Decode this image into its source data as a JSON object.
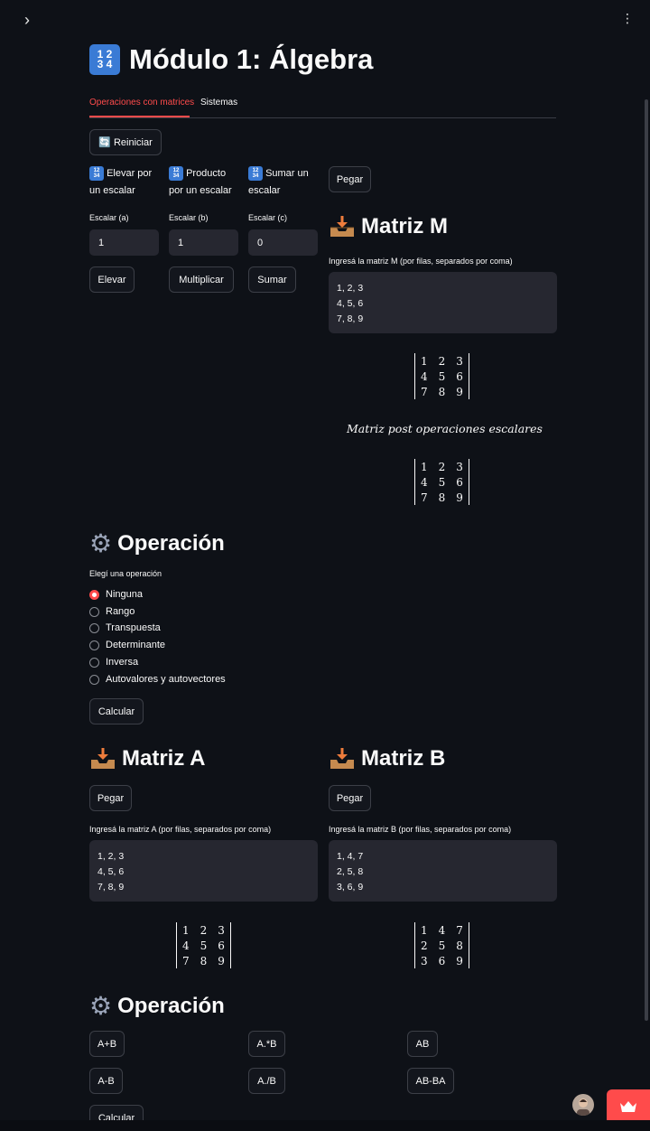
{
  "topbar": {
    "sidebar_toggle": "›",
    "menu": "⋮"
  },
  "title": {
    "emoji_top": "1 2",
    "emoji_bottom": "3 4",
    "text": "Módulo 1: Álgebra"
  },
  "tabs": [
    {
      "label": "Operaciones con matrices",
      "active": true
    },
    {
      "label": "Sistemas",
      "active": false
    }
  ],
  "reset_button": "🔄 Reiniciar",
  "scalar_ops": [
    {
      "heading_l1": "Elevar por",
      "heading_l2": "un escalar",
      "input_label": "Escalar (a)",
      "value": "1",
      "button": "Elevar"
    },
    {
      "heading_l1": "Producto",
      "heading_l2": "por un escalar",
      "input_label": "Escalar (b)",
      "value": "1",
      "button": "Multiplicar"
    },
    {
      "heading_l1": "Sumar un",
      "heading_l2": "escalar",
      "input_label": "Escalar (c)",
      "value": "0",
      "button": "Sumar"
    }
  ],
  "matrix_m": {
    "paste_button": "Pegar",
    "heading": "Matriz M",
    "input_label": "Ingresá la matriz M (por filas, separados por coma)",
    "text": "1, 2, 3\n4, 5, 6\n7, 8, 9",
    "rendered": [
      [
        "1",
        "2",
        "3"
      ],
      [
        "4",
        "5",
        "6"
      ],
      [
        "7",
        "8",
        "9"
      ]
    ],
    "caption": "Matriz post operaciones escalares",
    "post": [
      [
        "1",
        "2",
        "3"
      ],
      [
        "4",
        "5",
        "6"
      ],
      [
        "7",
        "8",
        "9"
      ]
    ]
  },
  "operation1": {
    "heading": "Operación",
    "label": "Elegí una operación",
    "options": [
      "Ninguna",
      "Rango",
      "Transpuesta",
      "Determinante",
      "Inversa",
      "Autovalores y autovectores"
    ],
    "selected": "Ninguna",
    "button": "Calcular"
  },
  "matrix_a": {
    "heading": "Matriz A",
    "paste_button": "Pegar",
    "input_label": "Ingresá la matriz A (por filas, separados por coma)",
    "text": "1, 2, 3\n4, 5, 6\n7, 8, 9",
    "rendered": [
      [
        "1",
        "2",
        "3"
      ],
      [
        "4",
        "5",
        "6"
      ],
      [
        "7",
        "8",
        "9"
      ]
    ]
  },
  "matrix_b": {
    "heading": "Matriz B",
    "paste_button": "Pegar",
    "input_label": "Ingresá la matriz B (por filas, separados por coma)",
    "text": "1, 4, 7\n2, 5, 8\n3, 6, 9",
    "rendered": [
      [
        "1",
        "4",
        "7"
      ],
      [
        "2",
        "5",
        "8"
      ],
      [
        "3",
        "6",
        "9"
      ]
    ]
  },
  "operation2": {
    "heading": "Operación",
    "buttons": [
      "A+B",
      "A.*B",
      "AB",
      "A-B",
      "A./B",
      "AB-BA"
    ],
    "calc_button": "Calcular"
  },
  "colors": {
    "background": "#0e1117",
    "accent": "#ff4b4b",
    "input_bg": "#262730"
  }
}
